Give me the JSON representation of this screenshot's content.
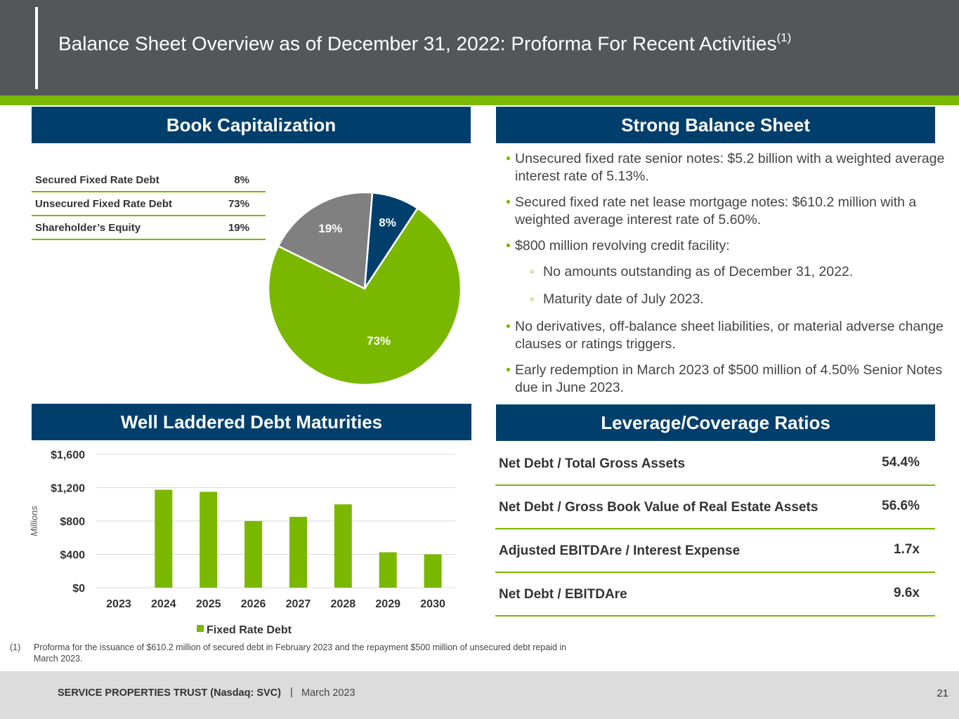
{
  "header": {
    "title": "Balance Sheet Overview as of December 31, 2022: Proforma For Recent Activities",
    "title_sup": "(1)"
  },
  "sections": {
    "book_cap": "Book Capitalization",
    "strong_bs": "Strong Balance Sheet",
    "debt_maturities": "Well Laddered Debt Maturities",
    "leverage": "Leverage/Coverage Ratios"
  },
  "cap_table": [
    {
      "label": "Secured Fixed Rate Debt",
      "value": "8%"
    },
    {
      "label": "Unsecured Fixed Rate Debt",
      "value": "73%"
    },
    {
      "label": "Shareholder’s Equity",
      "value": "19%"
    }
  ],
  "strong_bullets": {
    "b1": "Unsecured fixed rate senior notes: $5.2 billion with a weighted average interest rate of 5.13%.",
    "b2": "Secured fixed rate net lease mortgage notes: $610.2 million with a weighted average interest rate of 5.60%.",
    "b3": "$800 million revolving credit facility:",
    "s1": "No amounts outstanding as of December 31, 2022.",
    "s2": "Maturity date of July 2023.",
    "b4": "No derivatives, off-balance sheet liabilities, or material adverse change clauses or ratings triggers.",
    "b5": "Early redemption in March 2023 of $500 million of 4.50% Senior Notes due in June 2023."
  },
  "ratios": [
    {
      "label": "Net Debt / Total Gross Assets",
      "value": "54.4%"
    },
    {
      "label": "Net Debt / Gross Book Value of Real Estate Assets",
      "value": "56.6%"
    },
    {
      "label": "Adjusted EBITDAre / Interest Expense",
      "value": "1.7x"
    },
    {
      "label": "Net Debt / EBITDAre",
      "value": "9.6x"
    }
  ],
  "footnote": {
    "num": "(1)",
    "text": "Proforma for the issuance of $610.2 million of secured debt in February 2023 and the repayment $500 million of unsecured debt repaid in March 2023."
  },
  "footer": {
    "company": "SERVICE PROPERTIES TRUST (Nasdaq: SVC)",
    "separator": "|",
    "date": "March  2023",
    "page": "21"
  },
  "colors": {
    "navy": "#003f6c",
    "green": "#7ab800",
    "gray": "#808080",
    "header": "#54565a"
  },
  "chart_data": [
    {
      "type": "pie",
      "slices": [
        {
          "label": "Secured Fixed Rate Debt",
          "value": 8,
          "display": "8%",
          "color": "#003f6c"
        },
        {
          "label": "Unsecured Fixed Rate Debt",
          "value": 73,
          "display": "73%",
          "color": "#7ab800"
        },
        {
          "label": "Shareholder’s Equity",
          "value": 19,
          "display": "19%",
          "color": "#808080"
        }
      ]
    },
    {
      "type": "bar",
      "categories": [
        "2023",
        "2024",
        "2025",
        "2026",
        "2027",
        "2028",
        "2029",
        "2030"
      ],
      "series": [
        {
          "name": "Fixed Rate Debt",
          "values": [
            0,
            1175,
            1150,
            800,
            850,
            1000,
            425,
            400
          ],
          "color": "#7ab800"
        }
      ],
      "ylabel": "Millions",
      "ylim": [
        0,
        1600
      ],
      "yticks": [
        0,
        400,
        800,
        1200,
        1600
      ],
      "ytick_labels": [
        "$0",
        "$400",
        "$800",
        "$1,200",
        "$1,600"
      ],
      "grid": true,
      "legend": "bottom"
    }
  ]
}
